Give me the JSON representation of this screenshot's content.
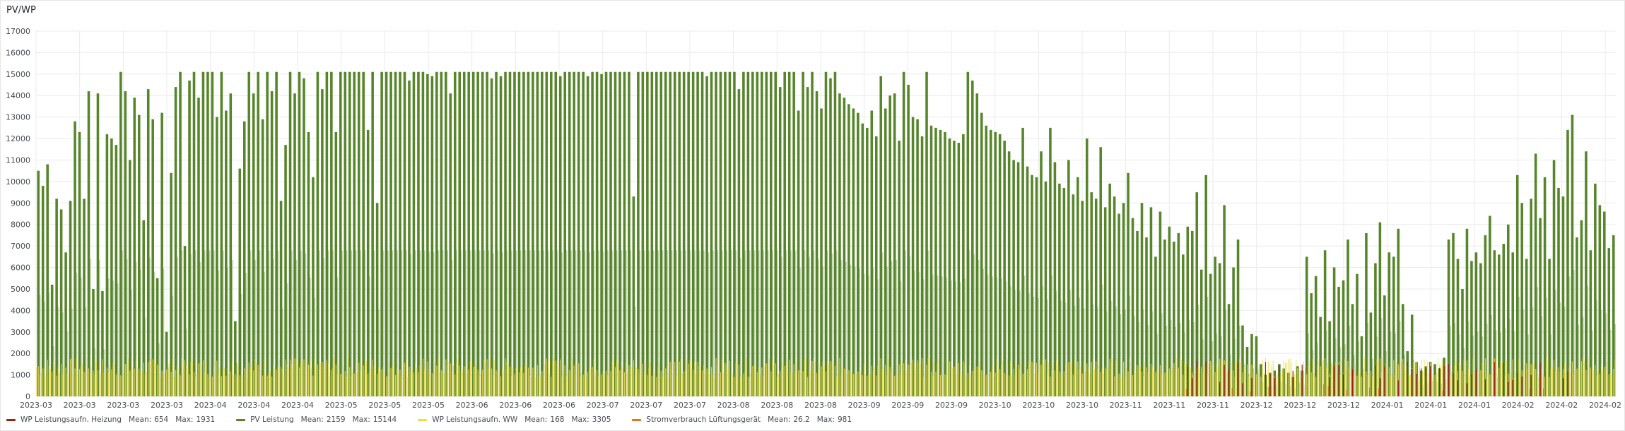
{
  "panel": {
    "title": "PV/WP"
  },
  "colors": {
    "background": "#ffffff",
    "grid": "#ebebeb",
    "pv": "#56852a",
    "heizung": "#a11f0e",
    "ww": "#f2dd48",
    "lueftung": "#e8741a"
  },
  "chart_data": {
    "type": "bar",
    "ylim": [
      0,
      17000
    ],
    "yticks": [
      0,
      1000,
      2000,
      3000,
      4000,
      5000,
      6000,
      7000,
      8000,
      9000,
      10000,
      11000,
      12000,
      13000,
      14000,
      15000,
      16000,
      17000
    ],
    "xtick_labels": [
      "2023-03",
      "2023-03",
      "2023-03",
      "2023-03",
      "2023-04",
      "2023-04",
      "2023-04",
      "2023-05",
      "2023-05",
      "2023-05",
      "2023-06",
      "2023-06",
      "2023-06",
      "2023-07",
      "2023-07",
      "2023-07",
      "2023-08",
      "2023-08",
      "2023-08",
      "2023-09",
      "2023-09",
      "2023-09",
      "2023-10",
      "2023-10",
      "2023-10",
      "2023-11",
      "2023-11",
      "2023-11",
      "2023-12",
      "2023-12",
      "2023-12",
      "2024-01",
      "2024-01",
      "2024-01",
      "2024-02",
      "2024-02",
      "2024-02"
    ],
    "grid": true,
    "legend_position": "bottom",
    "x_range": [
      "2023-03-01",
      "2024-02-27"
    ],
    "series": [
      {
        "name": "WP Leistungsaufn. Heizung",
        "color_key": "heizung",
        "mean": "654",
        "max": "1931"
      },
      {
        "name": "PV Leistung",
        "color_key": "pv",
        "mean": "2159",
        "max": "15144"
      },
      {
        "name": "WP Leistungsaufn. WW",
        "color_key": "ww",
        "mean": "168",
        "max": "3305"
      },
      {
        "name": "Stromverbrauch Lüftungsgerät",
        "color_key": "lueftung",
        "mean": "26.2",
        "max": "981"
      }
    ],
    "pv_daily_peaks": [
      10500,
      9800,
      10800,
      5200,
      9200,
      8700,
      6700,
      9100,
      12800,
      12300,
      9200,
      14200,
      5000,
      14100,
      4900,
      12200,
      12000,
      11700,
      15100,
      14200,
      11000,
      13900,
      13100,
      8200,
      14300,
      12900,
      5500,
      13200,
      3000,
      10400,
      14400,
      15100,
      7000,
      14700,
      15100,
      13900,
      15100,
      15100,
      15100,
      13000,
      15100,
      13300,
      14100,
      3500,
      10600,
      12800,
      15100,
      14100,
      15100,
      12900,
      15100,
      14200,
      15100,
      9100,
      11700,
      15100,
      14100,
      15100,
      14800,
      12300,
      10200,
      15100,
      14300,
      15100,
      15100,
      12300,
      15100,
      15100,
      15100,
      15100,
      15100,
      15100,
      12400,
      15100,
      9000,
      15100,
      15100,
      15100,
      15100,
      15100,
      15100,
      14700,
      15100,
      15100,
      15100,
      15000,
      14900,
      15100,
      15100,
      15100,
      14100,
      15100,
      15100,
      15100,
      15100,
      15100,
      15100,
      15100,
      15100,
      14800,
      15100,
      14900,
      15100,
      15100,
      15100,
      15100,
      15100,
      15100,
      15100,
      15100,
      15100,
      15100,
      15100,
      15100,
      14900,
      15100,
      15100,
      15100,
      15100,
      15100,
      14900,
      15100,
      15100,
      15000,
      15100,
      15100,
      15100,
      15100,
      15100,
      15100,
      9300,
      15100,
      15100,
      15100,
      15100,
      15100,
      15100,
      15100,
      15100,
      15100,
      15100,
      15100,
      15100,
      15100,
      15100,
      15100,
      14900,
      15100,
      15100,
      15100,
      15100,
      15100,
      15100,
      14300,
      15100,
      15100,
      15100,
      15100,
      15100,
      15100,
      15100,
      15100,
      14400,
      15100,
      15100,
      15100,
      13300,
      15100,
      14400,
      15100,
      14200,
      13400,
      15100,
      14800,
      15100,
      14100,
      13900,
      13600,
      13400,
      13200,
      12700,
      12500,
      13300,
      12100,
      14900,
      13400,
      14000,
      14100,
      11900,
      15100,
      14500,
      13000,
      12900,
      12100,
      15100,
      12600,
      12500,
      12400,
      12300,
      12000,
      11900,
      11800,
      12200,
      15100,
      14700,
      14100,
      13200,
      12600,
      12400,
      12300,
      12200,
      11900,
      11400,
      11000,
      10900,
      12500,
      10700,
      10300,
      10200,
      11400,
      10000,
      12500,
      10900,
      9900,
      9700,
      11000,
      9400,
      10200,
      9100,
      12000,
      9500,
      9200,
      11600,
      8800,
      9900,
      9300,
      8500,
      9000,
      10400,
      8300,
      7700,
      9000,
      7400,
      8800,
      6500,
      8600,
      7300,
      7900,
      7200,
      7600,
      6600,
      7900,
      7700,
      9500,
      5900,
      10300,
      5700,
      6500,
      6200,
      8900,
      4300,
      6000,
      7300,
      3300,
      2300,
      2900,
      2800,
      1500,
      1000,
      1100,
      1200,
      1500,
      1300,
      1100,
      900,
      1400,
      1200,
      6500,
      4800,
      5600,
      3700,
      6800,
      3500,
      6000,
      5100,
      5400,
      7300,
      4300,
      5700,
      2800,
      7600,
      3900,
      6200,
      8100,
      4700,
      6700,
      6500,
      7800,
      4300,
      2100,
      3800,
      1600,
      1200,
      1400,
      1600,
      1500,
      1300,
      1800,
      7300,
      7600,
      6400,
      5000,
      7800,
      6300,
      6700,
      6200,
      7500,
      8400,
      6800,
      6600,
      7100,
      8000,
      6700,
      10300,
      9000,
      6400,
      9200,
      11300,
      8300,
      10200,
      6400,
      11000,
      9700,
      9300,
      12400,
      13100,
      7400,
      8200,
      11400,
      6800,
      9900,
      8900,
      8600,
      6900,
      7500
    ],
    "pv_pattern_note": "",
    "baseline_band": [
      0,
      1800
    ]
  },
  "legend": {
    "mean_label": "Mean:",
    "max_label": "Max:"
  }
}
